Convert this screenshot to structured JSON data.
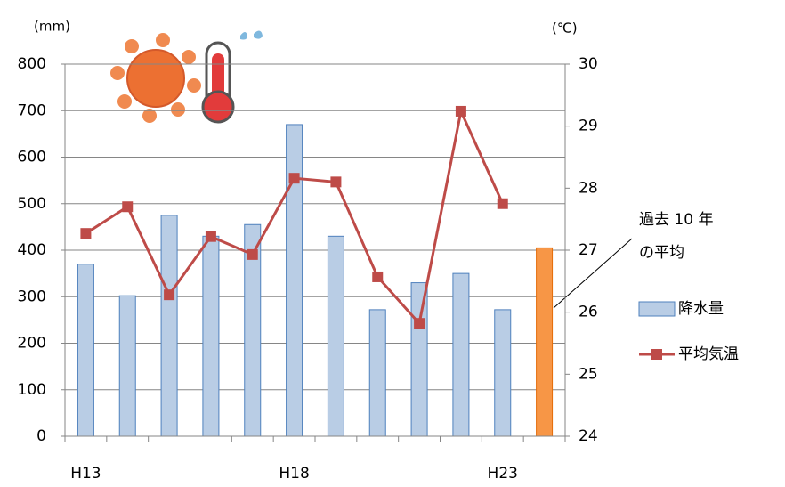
{
  "chart_data": {
    "type": "bar_line",
    "categories": [
      "H13",
      null,
      null,
      null,
      null,
      "H18",
      null,
      null,
      null,
      null,
      "H23",
      null
    ],
    "series": [
      {
        "name": "降水量",
        "type": "bar",
        "color": "#b9cde5",
        "colors": [
          "#b9cde5",
          "#b9cde5",
          "#b9cde5",
          "#b9cde5",
          "#b9cde5",
          "#b9cde5",
          "#b9cde5",
          "#b9cde5",
          "#b9cde5",
          "#b9cde5",
          "#b9cde5",
          "#f79646"
        ],
        "values": [
          370,
          302,
          475,
          430,
          455,
          670,
          430,
          272,
          330,
          350,
          272,
          405
        ]
      },
      {
        "name": "平均気温",
        "type": "line",
        "axis": "y2",
        "color": "#be4b48",
        "values": [
          27.27,
          27.7,
          26.28,
          27.22,
          26.93,
          28.16,
          28.1,
          26.57,
          25.82,
          29.24,
          27.75,
          null
        ]
      }
    ],
    "ylabel": "(mm)",
    "y2label": "(℃)",
    "ylim": [
      0,
      800
    ],
    "yticks": [
      0,
      100,
      200,
      300,
      400,
      500,
      600,
      700,
      800
    ],
    "y2lim": [
      24,
      30
    ],
    "y2ticks": [
      24,
      25,
      26,
      27,
      28,
      29,
      30
    ],
    "annotation": [
      "過去 10 年",
      "の平均"
    ],
    "grid": true,
    "legend": "right"
  }
}
